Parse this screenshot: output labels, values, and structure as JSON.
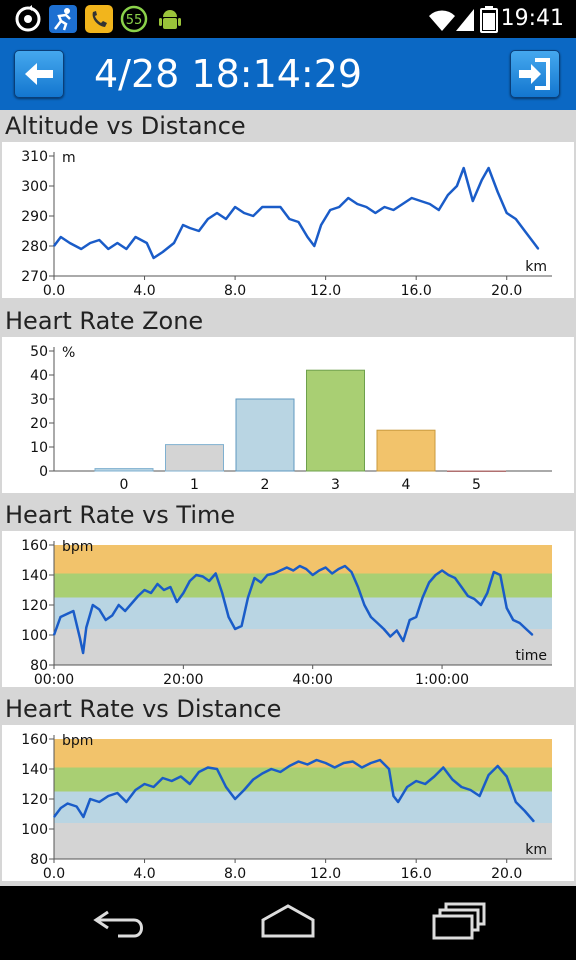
{
  "status_bar": {
    "time": "19:41",
    "icons": [
      "sync-icon",
      "runner-app-icon",
      "call-icon",
      "counter-badge-icon",
      "android-icon",
      "wifi-icon",
      "signal-icon",
      "battery-icon"
    ],
    "badge_count": "55"
  },
  "title_bar": {
    "title": "4/28 18:14:29",
    "back_icon": "back-arrow-icon",
    "export_icon": "export-icon",
    "color": "#0b68c4"
  },
  "sections": {
    "altitude": "Altitude vs Distance",
    "hr_zone": "Heart Rate Zone",
    "hr_time": "Heart Rate vs Time",
    "hr_distance": "Heart Rate vs Distance"
  },
  "zone_colors": {
    "z1": "#d4d4d4",
    "z2": "#b9d5e3",
    "z3": "#a9cf73",
    "z4": "#f2c36b",
    "line": "#1a5cc8"
  },
  "chart_data": [
    {
      "type": "line",
      "title": "Altitude vs Distance",
      "xlabel": "km",
      "ylabel": "m",
      "xlim": [
        0,
        22
      ],
      "ylim": [
        270,
        310
      ],
      "xticks": [
        "0.0",
        "4.0",
        "8.0",
        "12.0",
        "16.0",
        "20.0"
      ],
      "yticks": [
        "270",
        "280",
        "290",
        "300",
        "310"
      ],
      "x": [
        0,
        0.3,
        0.7,
        1.2,
        1.6,
        2.0,
        2.4,
        2.8,
        3.2,
        3.6,
        4.1,
        4.4,
        4.8,
        5.3,
        5.7,
        6.0,
        6.4,
        6.8,
        7.2,
        7.6,
        8.0,
        8.4,
        8.8,
        9.2,
        9.6,
        10.0,
        10.4,
        10.8,
        11.2,
        11.5,
        11.8,
        12.2,
        12.6,
        13.0,
        13.4,
        13.8,
        14.2,
        14.6,
        15.0,
        15.4,
        15.8,
        16.2,
        16.6,
        17.0,
        17.4,
        17.8,
        18.1,
        18.5,
        18.9,
        19.2,
        19.6,
        20.0,
        20.4,
        20.8,
        21.2,
        21.4
      ],
      "y": [
        280,
        283,
        281,
        279,
        281,
        282,
        279,
        281,
        279,
        283,
        281,
        276,
        278,
        281,
        287,
        286,
        285,
        289,
        291,
        289,
        293,
        291,
        290,
        293,
        293,
        293,
        289,
        288,
        283,
        280,
        287,
        292,
        293,
        296,
        294,
        293,
        291,
        293,
        292,
        294,
        296,
        295,
        294,
        292,
        297,
        300,
        306,
        295,
        302,
        306,
        298,
        291,
        289,
        285,
        281,
        279
      ]
    },
    {
      "type": "bar",
      "title": "Heart Rate Zone",
      "ylabel": "%",
      "categories": [
        "0",
        "1",
        "2",
        "3",
        "4",
        "5"
      ],
      "values": [
        1,
        11,
        30,
        42,
        17,
        0
      ],
      "ylim": [
        0,
        50
      ],
      "yticks": [
        "0",
        "10",
        "20",
        "30",
        "40",
        "50"
      ]
    },
    {
      "type": "line",
      "title": "Heart Rate vs Time",
      "xlabel": "time",
      "ylabel": "bpm",
      "xlim": [
        0,
        77
      ],
      "ylim": [
        80,
        160
      ],
      "xticks": [
        "00:00",
        "20:00",
        "40:00",
        "1:00:00"
      ],
      "yticks": [
        "80",
        "100",
        "120",
        "140",
        "160"
      ],
      "zone_bands": [
        [
          80,
          104
        ],
        [
          104,
          125
        ],
        [
          125,
          141
        ],
        [
          141,
          160
        ]
      ],
      "x": [
        0,
        1,
        2,
        3,
        4,
        4.5,
        5,
        6,
        7,
        8,
        9,
        10,
        11,
        12,
        13,
        14,
        15,
        16,
        17,
        18,
        19,
        20,
        21,
        22,
        23,
        24,
        25,
        26,
        27,
        28,
        29,
        30,
        31,
        32,
        33,
        34,
        35,
        36,
        37,
        38,
        39,
        40,
        41,
        42,
        43,
        44,
        45,
        46,
        47,
        48,
        49,
        50,
        51,
        52,
        53,
        54,
        55,
        56,
        57,
        58,
        59,
        60,
        61,
        62,
        63,
        64,
        65,
        66,
        67,
        68,
        69,
        70,
        71,
        72,
        73,
        74
      ],
      "y": [
        100,
        112,
        114,
        116,
        98,
        88,
        105,
        120,
        117,
        110,
        113,
        120,
        116,
        121,
        126,
        130,
        128,
        134,
        130,
        132,
        122,
        128,
        136,
        140,
        139,
        136,
        141,
        128,
        112,
        104,
        106,
        125,
        138,
        135,
        140,
        141,
        143,
        145,
        143,
        146,
        144,
        140,
        143,
        145,
        141,
        144,
        146,
        142,
        132,
        120,
        112,
        108,
        104,
        99,
        103,
        96,
        110,
        112,
        125,
        135,
        140,
        143,
        140,
        138,
        132,
        126,
        124,
        120,
        128,
        142,
        140,
        118,
        110,
        108,
        104,
        100
      ]
    },
    {
      "type": "line",
      "title": "Heart Rate vs Distance",
      "xlabel": "km",
      "ylabel": "bpm",
      "xlim": [
        0,
        22
      ],
      "ylim": [
        80,
        160
      ],
      "xticks": [
        "0.0",
        "4.0",
        "8.0",
        "12.0",
        "16.0",
        "20.0"
      ],
      "yticks": [
        "80",
        "100",
        "120",
        "140",
        "160"
      ],
      "zone_bands": [
        [
          80,
          104
        ],
        [
          104,
          125
        ],
        [
          125,
          141
        ],
        [
          141,
          160
        ]
      ],
      "x": [
        0,
        0.3,
        0.6,
        1.0,
        1.3,
        1.6,
        2.0,
        2.4,
        2.8,
        3.2,
        3.6,
        4.0,
        4.4,
        4.8,
        5.2,
        5.6,
        6.0,
        6.4,
        6.8,
        7.2,
        7.6,
        8.0,
        8.4,
        8.8,
        9.2,
        9.6,
        10.0,
        10.4,
        10.8,
        11.2,
        11.6,
        12.0,
        12.4,
        12.8,
        13.2,
        13.6,
        14.0,
        14.4,
        14.8,
        15.0,
        15.2,
        15.6,
        16.0,
        16.4,
        16.8,
        17.2,
        17.6,
        18.0,
        18.4,
        18.8,
        19.2,
        19.6,
        20.0,
        20.4,
        20.8,
        21.2
      ],
      "y": [
        108,
        114,
        117,
        115,
        108,
        120,
        118,
        122,
        124,
        118,
        126,
        130,
        128,
        134,
        132,
        135,
        130,
        138,
        141,
        140,
        128,
        120,
        126,
        133,
        137,
        140,
        138,
        142,
        145,
        143,
        146,
        144,
        141,
        144,
        145,
        141,
        144,
        146,
        140,
        122,
        118,
        128,
        132,
        130,
        135,
        141,
        133,
        128,
        126,
        122,
        136,
        142,
        135,
        118,
        112,
        105
      ]
    }
  ]
}
